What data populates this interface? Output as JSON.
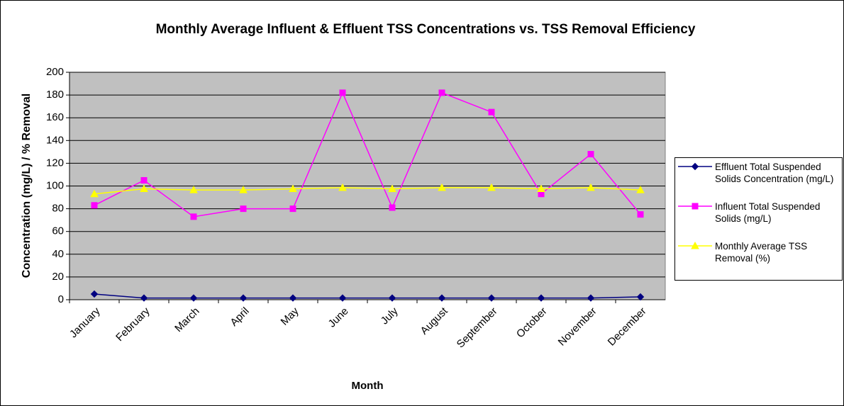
{
  "chart_data": {
    "type": "line",
    "title": "Monthly Average Influent & Effluent TSS Concentrations vs. TSS Removal Efficiency",
    "x_label": "Month",
    "y_label": "Concentration (mg/L) / % Removal",
    "categories": [
      "January",
      "February",
      "March",
      "April",
      "May",
      "June",
      "July",
      "August",
      "September",
      "October",
      "November",
      "December"
    ],
    "series": [
      {
        "name": "Effluent Total Suspended Solids Concentration (mg/L)",
        "color": "#000080",
        "marker": "diamond",
        "values": [
          5,
          1.5,
          1.5,
          1.5,
          1.5,
          1.5,
          1.5,
          1.5,
          1.5,
          1.5,
          1.5,
          2.5
        ]
      },
      {
        "name": "Influent Total Suspended Solids (mg/L)",
        "color": "#ff00ff",
        "marker": "square",
        "values": [
          83,
          105,
          73,
          80,
          80,
          182,
          81,
          182,
          165,
          93,
          128,
          75
        ]
      },
      {
        "name": "Monthly Average TSS Removal (%)",
        "color": "#ffff00",
        "marker": "triangle",
        "values": [
          93,
          97.5,
          96.5,
          96.5,
          97.5,
          98.5,
          97.5,
          98.5,
          98.5,
          97.5,
          98.5,
          96.5
        ]
      }
    ],
    "ylim": [
      0,
      200
    ],
    "yticks": [
      0,
      20,
      40,
      60,
      80,
      100,
      120,
      140,
      160,
      180,
      200
    ],
    "grid": true,
    "legend": "right"
  }
}
